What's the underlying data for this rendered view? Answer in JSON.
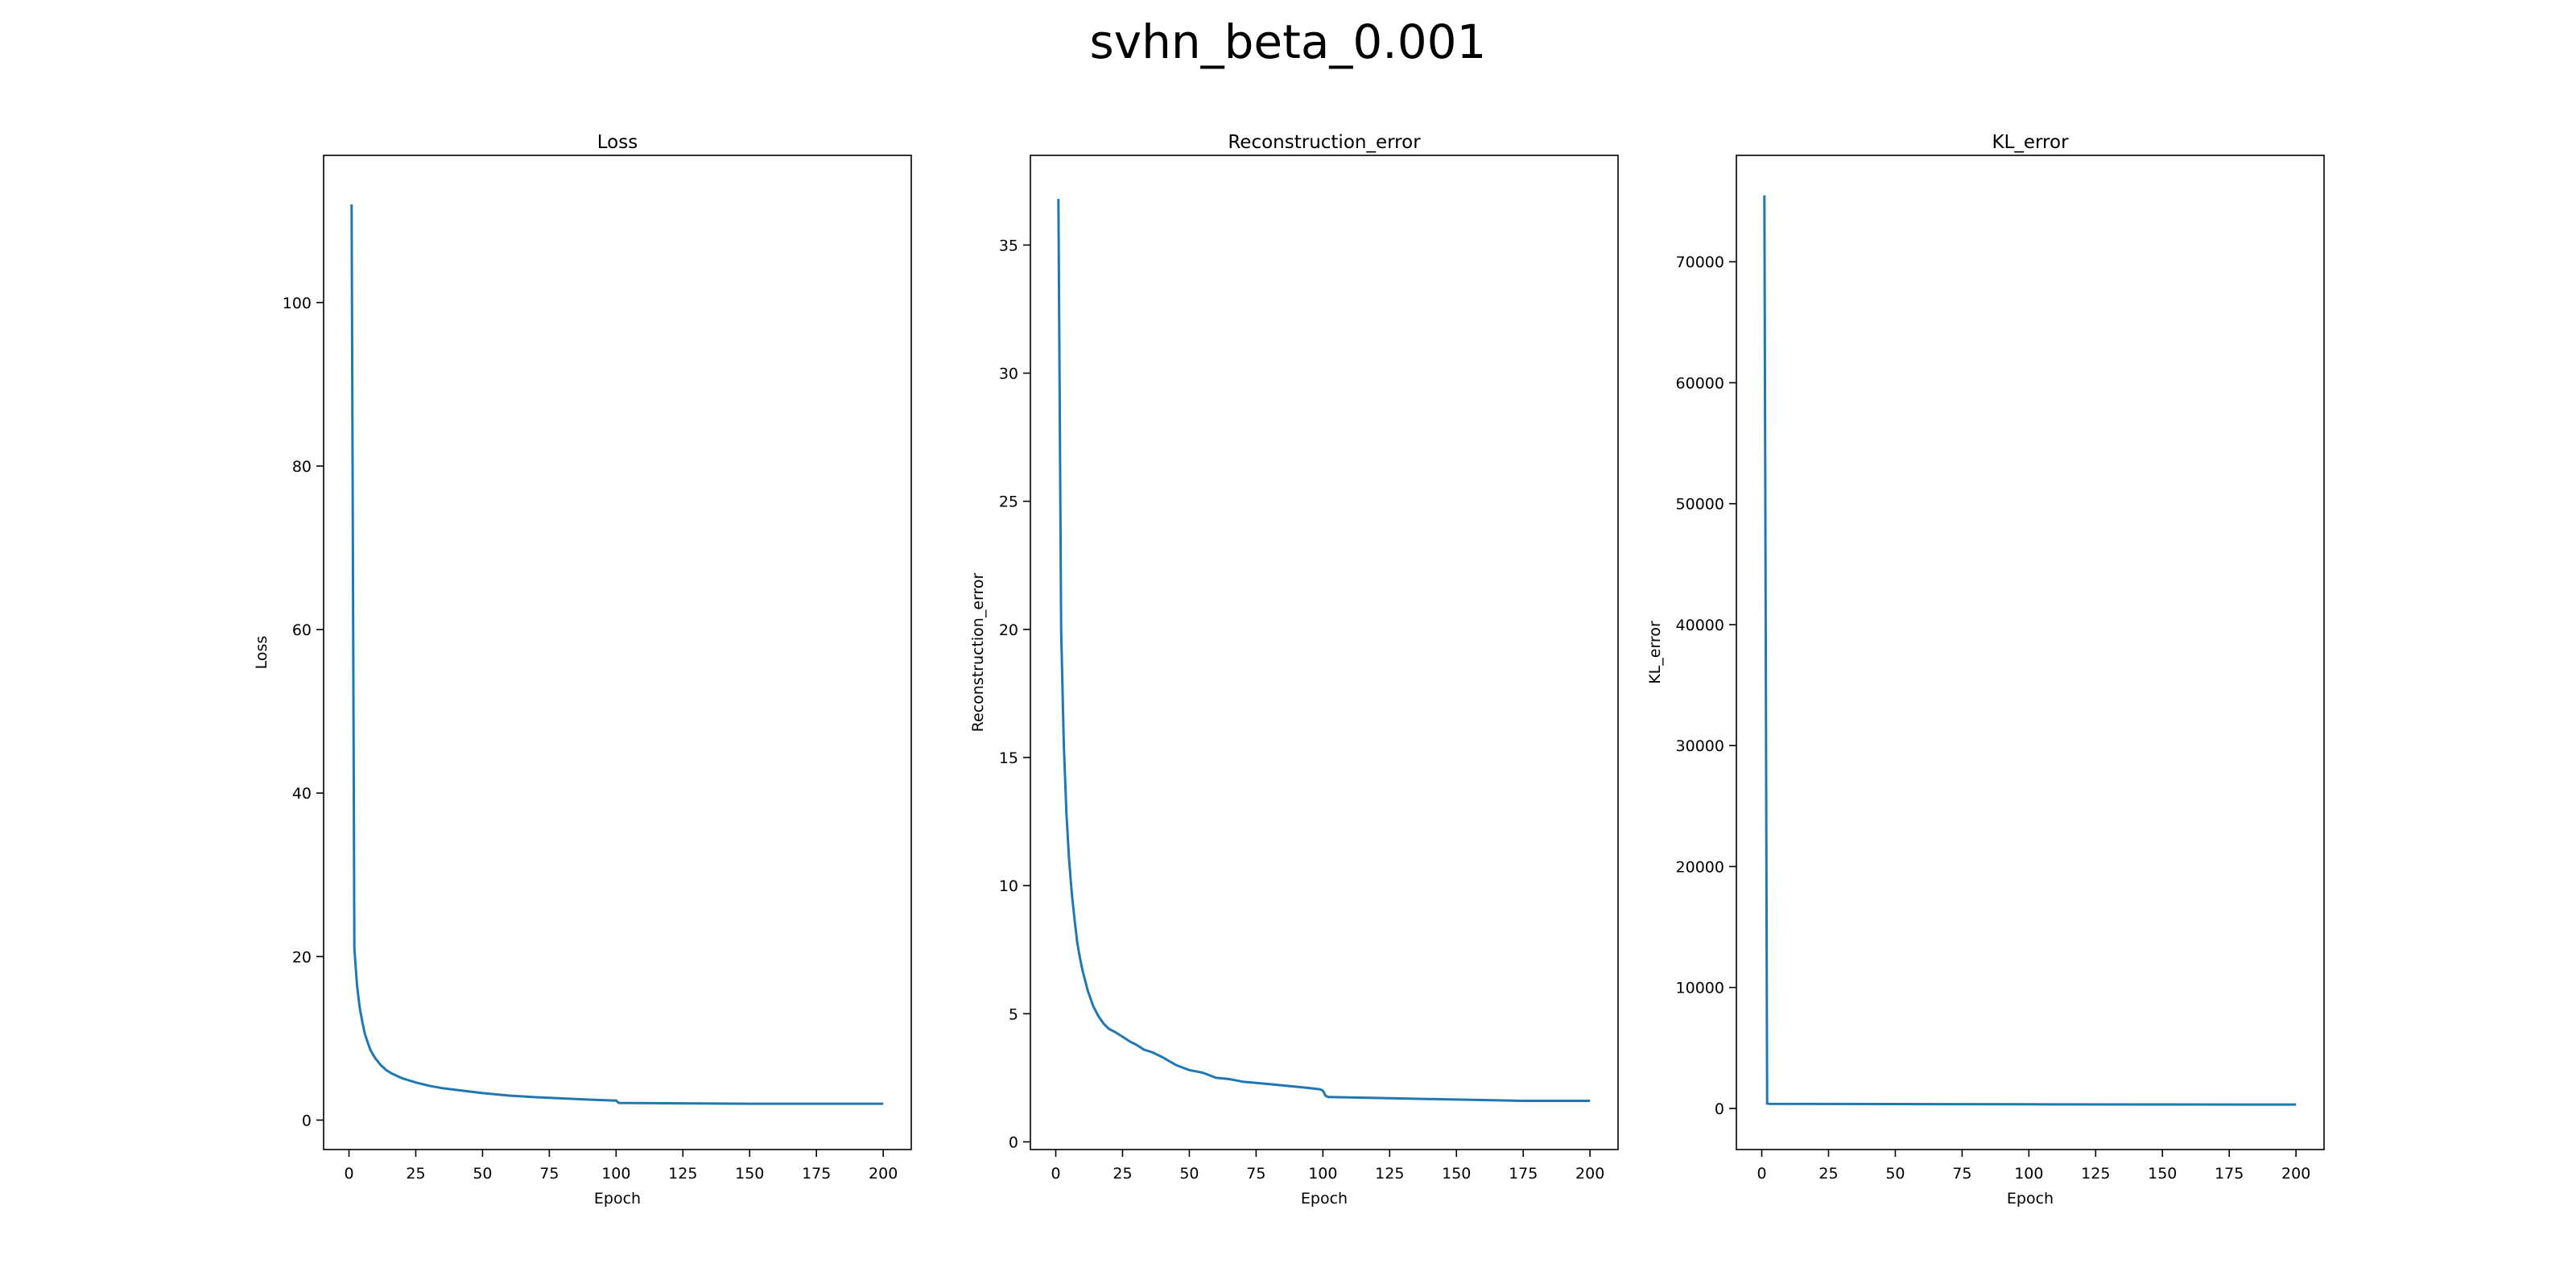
{
  "figure": {
    "title": "svhn_beta_0.001"
  },
  "colors": {
    "line": "#1f77b4",
    "axes": "#000000",
    "background": "#ffffff"
  },
  "chart_data": [
    {
      "type": "line",
      "title": "Loss",
      "xlabel": "Epoch",
      "ylabel": "Loss",
      "xlim": [
        -9.5,
        210.5
      ],
      "ylim": [
        -3.6,
        118
      ],
      "xticks": [
        0,
        25,
        50,
        75,
        100,
        125,
        150,
        175,
        200
      ],
      "yticks": [
        0,
        20,
        40,
        60,
        80,
        100
      ],
      "grid": false,
      "series": [
        {
          "x": [
            1,
            2,
            3,
            4,
            5,
            6,
            7,
            8,
            9,
            10,
            12,
            14,
            16,
            18,
            20,
            25,
            30,
            35,
            40,
            45,
            50,
            60,
            70,
            80,
            90,
            99,
            100,
            101,
            125,
            150,
            175,
            200
          ],
          "y": [
            112,
            21,
            16.5,
            13.8,
            12,
            10.5,
            9.5,
            8.6,
            8,
            7.5,
            6.7,
            6.1,
            5.7,
            5.4,
            5.1,
            4.6,
            4.2,
            3.9,
            3.7,
            3.5,
            3.3,
            3,
            2.8,
            2.65,
            2.5,
            2.4,
            2.4,
            2.1,
            2.05,
            2.0,
            2.0,
            2.0
          ]
        }
      ]
    },
    {
      "type": "line",
      "title": "Reconstruction_error",
      "xlabel": "Epoch",
      "ylabel": "Reconstruction_error",
      "xlim": [
        -9.5,
        210.5
      ],
      "ylim": [
        -0.3,
        38.5
      ],
      "xticks": [
        0,
        25,
        50,
        75,
        100,
        125,
        150,
        175,
        200
      ],
      "yticks": [
        0,
        5,
        10,
        15,
        20,
        25,
        30,
        35
      ],
      "grid": false,
      "series": [
        {
          "x": [
            1,
            2,
            3,
            4,
            5,
            6,
            7,
            8,
            9,
            10,
            12,
            14,
            16,
            18,
            20,
            22,
            25,
            28,
            30,
            33,
            36,
            40,
            45,
            50,
            55,
            60,
            65,
            70,
            75,
            80,
            85,
            90,
            95,
            99,
            100,
            101,
            102,
            125,
            150,
            175,
            200
          ],
          "y": [
            36.8,
            20,
            15.5,
            12.8,
            11,
            9.7,
            8.7,
            7.8,
            7.2,
            6.7,
            5.9,
            5.3,
            4.9,
            4.6,
            4.4,
            4.3,
            4.1,
            3.9,
            3.8,
            3.6,
            3.5,
            3.3,
            3.0,
            2.8,
            2.7,
            2.5,
            2.45,
            2.35,
            2.3,
            2.25,
            2.2,
            2.15,
            2.1,
            2.05,
            2.0,
            1.8,
            1.75,
            1.7,
            1.65,
            1.6,
            1.6
          ]
        }
      ]
    },
    {
      "type": "line",
      "title": "KL_error",
      "xlabel": "Epoch",
      "ylabel": "KL_error",
      "xlim": [
        -9.5,
        210.5
      ],
      "ylim": [
        -3400,
        78800
      ],
      "xticks": [
        0,
        25,
        50,
        75,
        100,
        125,
        150,
        175,
        200
      ],
      "yticks": [
        0,
        10000,
        20000,
        30000,
        40000,
        50000,
        60000,
        70000
      ],
      "grid": false,
      "series": [
        {
          "x": [
            1,
            2,
            3,
            50,
            100,
            150,
            200
          ],
          "y": [
            75500,
            400,
            380,
            360,
            340,
            330,
            320
          ]
        }
      ]
    }
  ]
}
